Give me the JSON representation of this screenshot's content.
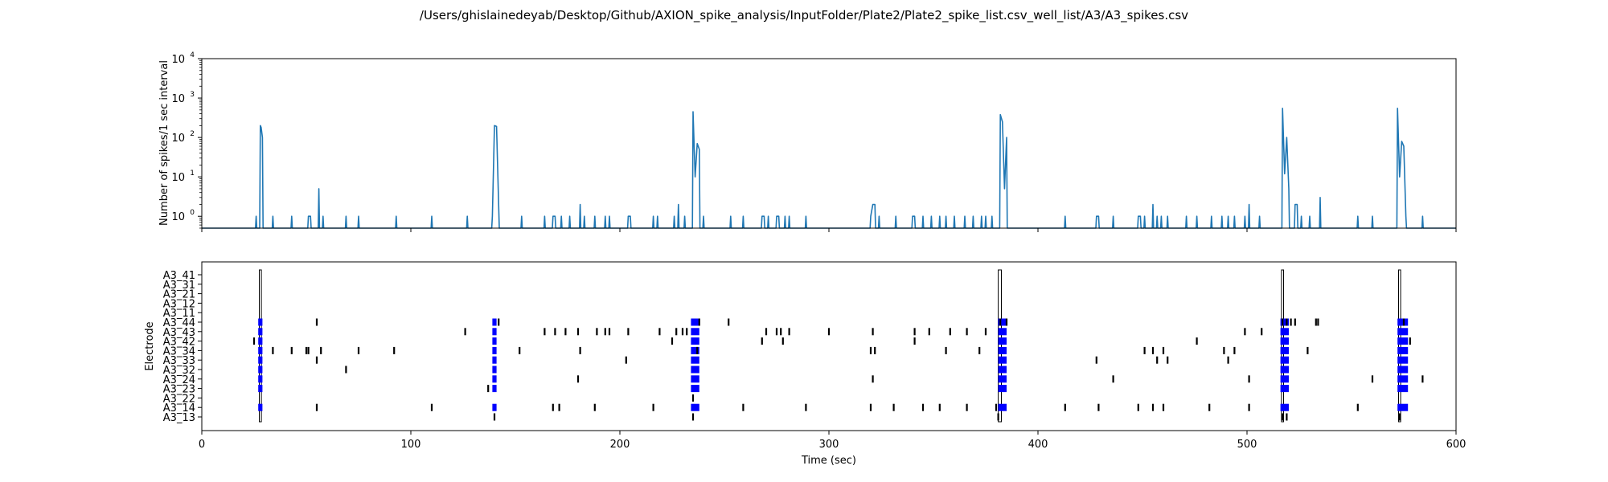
{
  "figure_title": "/Users/ghislainedeyab/Desktop/Github/AXION_spike_analysis/InputFolder/Plate2/Plate2_spike_list.csv_well_list/A3/A3_spikes.csv",
  "colors": {
    "line": "#1f77b4",
    "burst": "#0000ff",
    "spike": "#000000",
    "network_burst": "#000000"
  },
  "chart_data": [
    {
      "type": "line",
      "title": "",
      "xlabel": "",
      "ylabel": "Number of spikes/1 sec interval",
      "xlim": [
        0,
        600
      ],
      "ylim": [
        0.5,
        10000
      ],
      "yscale": "log",
      "yticks": [
        1,
        10,
        100,
        1000,
        10000
      ],
      "ytick_labels": [
        "10^0",
        "10^1",
        "10^2",
        "10^3",
        "10^4"
      ],
      "xticks": [
        0,
        100,
        200,
        300,
        400,
        500,
        600
      ],
      "grid": false,
      "series": [
        {
          "x": [
            26,
            28,
            28.4,
            29,
            34,
            43,
            51,
            52,
            56,
            58,
            69,
            75,
            93,
            110,
            127,
            139,
            140,
            141,
            142,
            153,
            164,
            168,
            169,
            172,
            176,
            181,
            183,
            188,
            193,
            195,
            204,
            205,
            216,
            218,
            226,
            228,
            231,
            235,
            236,
            237,
            238,
            240,
            253,
            259,
            268,
            269,
            271,
            275,
            276,
            279,
            281,
            289,
            320,
            321,
            322,
            324,
            332,
            340,
            341,
            345,
            349,
            353,
            356,
            360,
            365,
            369,
            373,
            375,
            378,
            382,
            383,
            384,
            385,
            413,
            428,
            429,
            436,
            448,
            449,
            451,
            455,
            457,
            459,
            462,
            471,
            476,
            483,
            488,
            491,
            494,
            499,
            501,
            506,
            517,
            518,
            519,
            520,
            523,
            524,
            526,
            530,
            535,
            553,
            560,
            572,
            573,
            574,
            575,
            576,
            584
          ],
          "y": [
            1,
            200,
            180,
            100,
            1,
            1,
            1,
            1,
            5,
            1,
            1,
            1,
            1,
            1,
            1,
            1,
            200,
            190,
            2,
            1,
            1,
            1,
            1,
            1,
            1,
            2,
            1,
            1,
            1,
            1,
            1,
            1,
            1,
            1,
            1,
            2,
            1,
            450,
            10,
            70,
            50,
            1,
            1,
            1,
            1,
            1,
            1,
            1,
            1,
            1,
            1,
            1,
            1,
            2,
            2,
            1,
            1,
            1,
            1,
            1,
            1,
            1,
            1,
            1,
            1,
            1,
            1,
            1,
            1,
            380,
            250,
            5,
            100,
            1,
            1,
            1,
            1,
            1,
            1,
            1,
            2,
            1,
            1,
            1,
            1,
            1,
            1,
            1,
            1,
            1,
            1,
            2,
            1,
            550,
            12,
            100,
            5,
            2,
            2,
            1,
            1,
            3,
            1,
            1,
            550,
            10,
            80,
            60,
            1,
            1
          ]
        }
      ]
    },
    {
      "type": "raster",
      "title": "",
      "xlabel": "Time (sec)",
      "ylabel": "Electrode",
      "xlim": [
        0,
        600
      ],
      "xticks": [
        0,
        100,
        200,
        300,
        400,
        500,
        600
      ],
      "grid": false,
      "electrodes": [
        "A3_41",
        "A3_31",
        "A3_21",
        "A3_12",
        "A3_11",
        "A3_44",
        "A3_43",
        "A3_42",
        "A3_34",
        "A3_33",
        "A3_32",
        "A3_24",
        "A3_23",
        "A3_22",
        "A3_14",
        "A3_13"
      ],
      "network_bursts": [
        [
          27.5,
          28.5
        ],
        [
          381,
          382.5
        ],
        [
          516.5,
          517.5
        ],
        [
          572.5,
          573.5
        ]
      ],
      "bursts": {
        "A3_44": [
          [
            27,
            29
          ],
          [
            139,
            141
          ],
          [
            234,
            238
          ],
          [
            381,
            385
          ],
          [
            516,
            520
          ],
          [
            572,
            577
          ]
        ],
        "A3_43": [
          [
            27,
            29
          ],
          [
            139,
            141
          ],
          [
            234,
            238
          ],
          [
            381,
            385
          ],
          [
            516,
            520
          ],
          [
            572,
            577
          ]
        ],
        "A3_42": [
          [
            27,
            29
          ],
          [
            139,
            141
          ],
          [
            234,
            238
          ],
          [
            381,
            385
          ],
          [
            516,
            520
          ],
          [
            572,
            577
          ]
        ],
        "A3_34": [
          [
            27,
            29
          ],
          [
            139,
            141
          ],
          [
            234,
            238
          ],
          [
            381,
            385
          ],
          [
            516,
            520
          ],
          [
            572,
            577
          ]
        ],
        "A3_33": [
          [
            27,
            29
          ],
          [
            139,
            141
          ],
          [
            234,
            238
          ],
          [
            381,
            385
          ],
          [
            516,
            520
          ],
          [
            572,
            577
          ]
        ],
        "A3_32": [
          [
            27,
            29
          ],
          [
            139,
            141
          ],
          [
            234,
            238
          ],
          [
            381,
            385
          ],
          [
            516,
            520
          ],
          [
            572,
            577
          ]
        ],
        "A3_24": [
          [
            27,
            29
          ],
          [
            139,
            141
          ],
          [
            234,
            238
          ],
          [
            381,
            385
          ],
          [
            516,
            520
          ],
          [
            572,
            577
          ]
        ],
        "A3_23": [
          [
            27,
            29
          ],
          [
            139,
            141
          ],
          [
            234,
            238
          ],
          [
            381,
            385
          ],
          [
            516,
            520
          ],
          [
            572,
            577
          ]
        ],
        "A3_14": [
          [
            27,
            29
          ],
          [
            139,
            141
          ],
          [
            234,
            238
          ],
          [
            381,
            385
          ],
          [
            516,
            520
          ],
          [
            572,
            577
          ]
        ]
      },
      "spikes": {
        "A3_44": [
          55,
          142,
          238,
          252,
          382,
          385,
          517,
          519,
          521,
          523,
          533,
          534,
          575
        ],
        "A3_43": [
          126,
          164,
          169,
          174,
          180,
          189,
          193,
          195,
          204,
          219,
          227,
          230,
          232,
          270,
          275,
          277,
          281,
          300,
          321,
          341,
          348,
          358,
          366,
          375,
          499,
          507
        ],
        "A3_42": [
          25,
          225,
          268,
          278,
          341,
          476,
          578
        ],
        "A3_34": [
          34,
          43,
          50,
          51,
          57,
          75,
          92,
          152,
          181,
          237,
          320,
          322,
          356,
          372,
          451,
          455,
          460,
          489,
          494,
          529
        ],
        "A3_33": [
          55,
          203,
          428,
          457,
          462,
          491
        ],
        "A3_32": [
          69
        ],
        "A3_24": [
          180,
          321,
          436,
          501,
          560,
          584
        ],
        "A3_23": [
          137
        ],
        "A3_22": [
          235
        ],
        "A3_14": [
          55,
          110,
          168,
          171,
          188,
          216,
          259,
          289,
          320,
          331,
          345,
          353,
          366,
          380,
          413,
          429,
          448,
          455,
          460,
          482,
          501,
          553
        ],
        "A3_13": [
          140,
          235,
          381,
          517,
          519,
          573
        ]
      }
    }
  ]
}
